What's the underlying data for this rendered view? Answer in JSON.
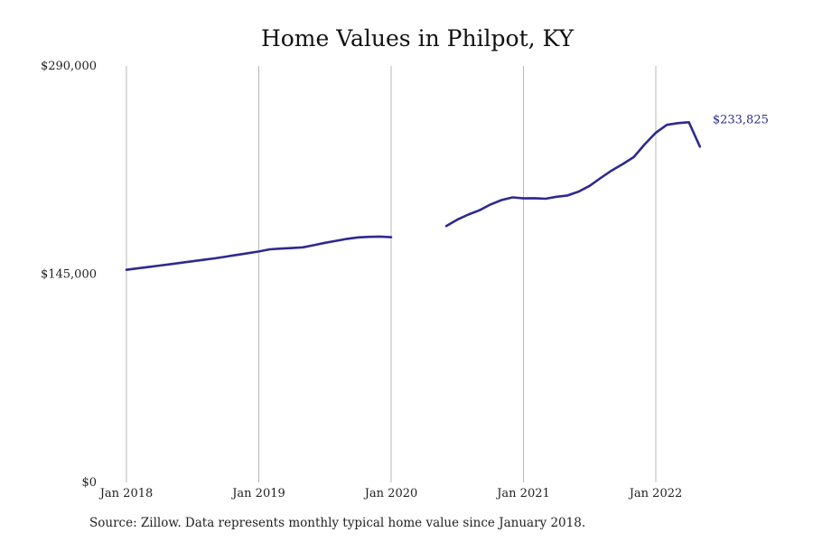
{
  "chart_data": {
    "type": "line",
    "title": "Home Values in Philpot, KY",
    "xlabel": "",
    "ylabel": "",
    "x_ticks": [
      "Jan 2018",
      "Jan 2019",
      "Jan 2020",
      "Jan 2021",
      "Jan 2022"
    ],
    "y_ticks": [
      "$290,000",
      "$145,000",
      "$0"
    ],
    "ylim": [
      0,
      290000
    ],
    "xlim": [
      "2018-01",
      "2022-12"
    ],
    "grid": "vertical",
    "line_color": "#2e2a8f",
    "end_label": "$233,825",
    "series": [
      {
        "name": "",
        "segments": [
          {
            "x": [
              "2018-01",
              "2018-02",
              "2018-03",
              "2018-04",
              "2018-05",
              "2018-06",
              "2018-07",
              "2018-08",
              "2018-09",
              "2018-10",
              "2018-11",
              "2018-12",
              "2019-01",
              "2019-02",
              "2019-03",
              "2019-04",
              "2019-05",
              "2019-06",
              "2019-07",
              "2019-08",
              "2019-09",
              "2019-10",
              "2019-11",
              "2019-12",
              "2020-01"
            ],
            "y": [
              148000,
              149000,
              150000,
              151000,
              152000,
              153000,
              154000,
              155000,
              156000,
              157200,
              158400,
              159600,
              160800,
              162300,
              162800,
              163200,
              163700,
              165200,
              166800,
              168200,
              169600,
              170600,
              171000,
              171200,
              170700
            ]
          },
          {
            "x": [
              "2020-06",
              "2020-07",
              "2020-08",
              "2020-09",
              "2020-10",
              "2020-11",
              "2020-12",
              "2021-01",
              "2021-02",
              "2021-03",
              "2021-04",
              "2021-05",
              "2021-06",
              "2021-07",
              "2021-08",
              "2021-09",
              "2021-10",
              "2021-11",
              "2021-12",
              "2022-01",
              "2022-02",
              "2022-03",
              "2022-04",
              "2022-05"
            ],
            "y": [
              178500,
              183000,
              186500,
              189500,
              193500,
              196600,
              198500,
              197800,
              197900,
              197500,
              198900,
              199800,
              202500,
              206500,
              212000,
              217200,
              221700,
              226500,
              235500,
              243500,
              249000,
              250200,
              250800,
              233825
            ]
          }
        ]
      }
    ],
    "source": "Source: Zillow. Data represents monthly typical home value since January 2018."
  }
}
